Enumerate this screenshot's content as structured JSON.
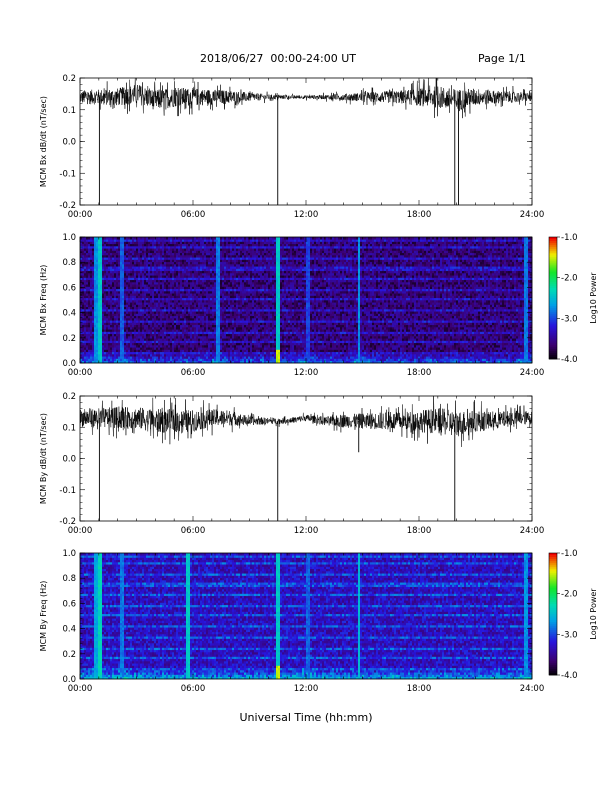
{
  "header": {
    "title": "2018/06/27  00:00-24:00 UT",
    "page": "Page 1/1"
  },
  "chart_data": [
    {
      "type": "line",
      "panel": "bx_timeseries",
      "ylabel": "MCM Bx dB/dt (nT/sec)",
      "xlim": [
        0,
        24
      ],
      "ylim": [
        -0.2,
        0.2
      ],
      "yticks": [
        "-0.2",
        "-0.1",
        "0.0",
        "0.1",
        "0.2"
      ],
      "xticks": [
        "00:00",
        "06:00",
        "12:00",
        "18:00",
        "24:00"
      ],
      "series": [
        {
          "x": [
            0,
            1,
            2,
            3,
            4,
            5,
            6,
            7,
            8,
            9,
            10,
            11,
            12,
            13,
            14,
            15,
            16,
            17,
            18,
            19,
            20,
            21,
            22,
            23,
            24
          ],
          "values": [
            0.14,
            0.14,
            0.14,
            0.15,
            0.13,
            0.14,
            0.14,
            0.14,
            0.14,
            0.14,
            0.14,
            0.14,
            0.14,
            0.14,
            0.14,
            0.14,
            0.14,
            0.14,
            0.14,
            0.14,
            0.13,
            0.14,
            0.14,
            0.14,
            0.14
          ]
        }
      ],
      "noise_amplitude": [
        0.03,
        0.035,
        0.04,
        0.045,
        0.045,
        0.045,
        0.04,
        0.035,
        0.03,
        0.02,
        0.012,
        0.008,
        0.008,
        0.01,
        0.015,
        0.02,
        0.025,
        0.03,
        0.04,
        0.05,
        0.05,
        0.04,
        0.03,
        0.025,
        0.02
      ],
      "spikes": [
        {
          "x": 1.03,
          "y": -0.2
        },
        {
          "x": 10.5,
          "y": -0.2
        },
        {
          "x": 19.9,
          "y": -0.2
        },
        {
          "x": 20.1,
          "y": -0.2
        }
      ]
    },
    {
      "type": "heatmap",
      "panel": "bx_spectrogram",
      "ylabel": "MCM Bx Freq (Hz)",
      "xlim": [
        0,
        24
      ],
      "ylim": [
        0,
        1.0
      ],
      "yticks": [
        "0.0",
        "0.2",
        "0.4",
        "0.6",
        "0.8",
        "1.0"
      ],
      "xticks": [
        "00:00",
        "06:00",
        "12:00",
        "18:00",
        "24:00"
      ],
      "colorbar": {
        "label": "Log10 Power",
        "range": [
          -4.0,
          -1.0
        ],
        "ticks": [
          "-1.0",
          "-2.0",
          "-3.0",
          "-4.0"
        ]
      },
      "background_level": -3.6,
      "harmonic_lines_hz": [
        0.08,
        0.17,
        0.25,
        0.33,
        0.42,
        0.5,
        0.58,
        0.67,
        0.75,
        0.83,
        0.92,
        0.98
      ],
      "vertical_bursts": [
        {
          "x": 0.83,
          "level": -2.7
        },
        {
          "x": 1.03,
          "level": -2.4
        },
        {
          "x": 2.2,
          "level": -2.9
        },
        {
          "x": 7.3,
          "level": -2.8
        },
        {
          "x": 10.5,
          "level": -1.5
        },
        {
          "x": 12.1,
          "level": -3.0
        },
        {
          "x": 14.8,
          "level": -2.7
        },
        {
          "x": 23.7,
          "level": -2.8
        }
      ]
    },
    {
      "type": "line",
      "panel": "by_timeseries",
      "ylabel": "MCM By dB/dt (nT/sec)",
      "xlim": [
        0,
        24
      ],
      "ylim": [
        -0.2,
        0.2
      ],
      "yticks": [
        "-0.2",
        "-0.1",
        "0.0",
        "0.1",
        "0.2"
      ],
      "xticks": [
        "00:00",
        "06:00",
        "12:00",
        "18:00",
        "24:00"
      ],
      "series": [
        {
          "x": [
            0,
            1,
            2,
            3,
            4,
            5,
            6,
            7,
            8,
            9,
            10,
            11,
            12,
            13,
            14,
            15,
            16,
            17,
            18,
            19,
            20,
            21,
            22,
            23,
            24
          ],
          "values": [
            0.13,
            0.13,
            0.13,
            0.13,
            0.12,
            0.12,
            0.12,
            0.13,
            0.13,
            0.12,
            0.12,
            0.12,
            0.13,
            0.12,
            0.12,
            0.12,
            0.12,
            0.12,
            0.12,
            0.12,
            0.11,
            0.12,
            0.12,
            0.13,
            0.13
          ]
        }
      ],
      "noise_amplitude": [
        0.04,
        0.045,
        0.05,
        0.05,
        0.055,
        0.055,
        0.05,
        0.04,
        0.035,
        0.02,
        0.015,
        0.012,
        0.015,
        0.02,
        0.03,
        0.035,
        0.04,
        0.04,
        0.05,
        0.06,
        0.06,
        0.05,
        0.04,
        0.035,
        0.03
      ],
      "spikes": [
        {
          "x": 1.03,
          "y": -0.2
        },
        {
          "x": 10.5,
          "y": -0.2
        },
        {
          "x": 19.9,
          "y": -0.2
        },
        {
          "x": 14.8,
          "y": 0.02
        }
      ]
    },
    {
      "type": "heatmap",
      "panel": "by_spectrogram",
      "ylabel": "MCM By Freq (Hz)",
      "xlim": [
        0,
        24
      ],
      "ylim": [
        0,
        1.0
      ],
      "yticks": [
        "0.0",
        "0.2",
        "0.4",
        "0.6",
        "0.8",
        "1.0"
      ],
      "xticks": [
        "00:00",
        "06:00",
        "12:00",
        "18:00",
        "24:00"
      ],
      "colorbar": {
        "label": "Log10 Power",
        "range": [
          -4.0,
          -1.0
        ],
        "ticks": [
          "-1.0",
          "-2.0",
          "-3.0",
          "-4.0"
        ]
      },
      "background_level": -3.3,
      "harmonic_lines_hz": [
        0.08,
        0.17,
        0.25,
        0.33,
        0.42,
        0.5,
        0.58,
        0.67,
        0.75,
        0.83,
        0.92,
        0.98
      ],
      "vertical_bursts": [
        {
          "x": 0.83,
          "level": -2.6
        },
        {
          "x": 1.03,
          "level": -2.3
        },
        {
          "x": 2.2,
          "level": -2.8
        },
        {
          "x": 5.7,
          "level": -2.4
        },
        {
          "x": 10.5,
          "level": -1.5
        },
        {
          "x": 12.1,
          "level": -2.9
        },
        {
          "x": 14.8,
          "level": -2.5
        },
        {
          "x": 23.7,
          "level": -2.7
        }
      ]
    }
  ],
  "xaxis_label": "Universal Time (hh:mm)",
  "colors": {
    "trace": "#000000",
    "axis": "#000000"
  }
}
